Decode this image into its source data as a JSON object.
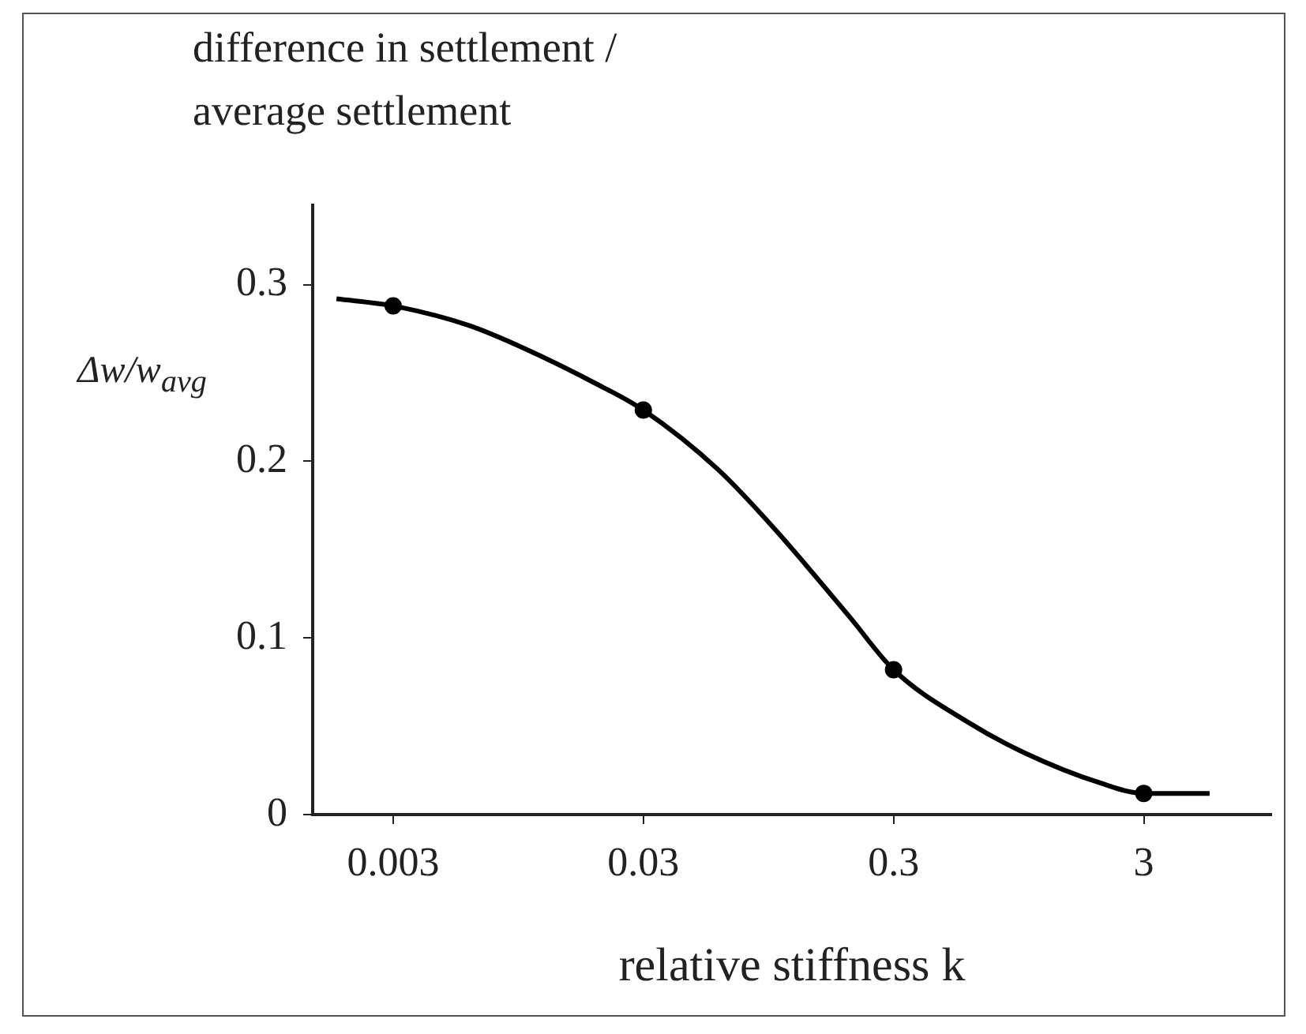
{
  "chart_data": {
    "type": "line",
    "title": "difference in settlement / average settlement",
    "xlabel": "relative stiffness k",
    "ylabel": "Δw/w$_{avg}$",
    "log": "x",
    "xlim": [
      0.00143,
      9.7
    ],
    "xticks": [
      0.003,
      0.03,
      0.3,
      3
    ],
    "ylim": [
      0,
      0.345
    ],
    "yticks": [
      0,
      0.1,
      0.2,
      0.3
    ],
    "grid": false,
    "legend": false,
    "series": [
      {
        "type": "line",
        "color": "#000000",
        "marker": "none",
        "x": [
          0.00178,
          0.003,
          0.006,
          0.01,
          0.02,
          0.03,
          0.06,
          0.1,
          0.2,
          0.3,
          0.6,
          1,
          2,
          3,
          5.5
        ],
        "values": [
          0.292,
          0.288,
          0.277,
          0.264,
          0.243,
          0.229,
          0.195,
          0.162,
          0.112,
          0.082,
          0.052,
          0.035,
          0.018,
          0.012,
          0.012
        ]
      },
      {
        "type": "scatter",
        "color": "#000000",
        "marker": "circle",
        "x": [
          0.003,
          0.03,
          0.3,
          3
        ],
        "values": [
          0.288,
          0.229,
          0.082,
          0.012
        ]
      }
    ]
  }
}
